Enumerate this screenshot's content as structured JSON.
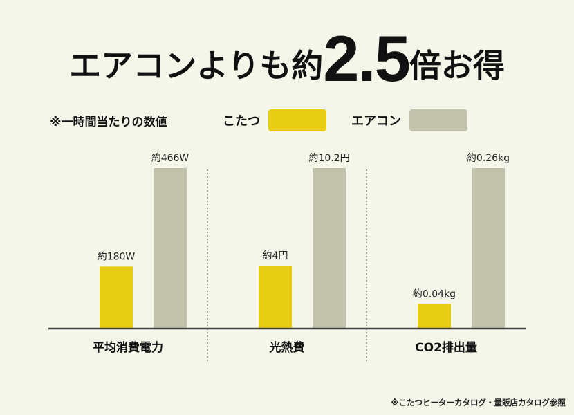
{
  "headline": {
    "prefix": "エアコンよりも約",
    "number": "2.5",
    "suffix": "倍お得"
  },
  "note": "※一時間当たりの数値",
  "legend": [
    {
      "label": "こたつ",
      "color": "#e6cc12"
    },
    {
      "label": "エアコン",
      "color": "#c2c1ab"
    }
  ],
  "chart_data": {
    "type": "bar",
    "groups": [
      {
        "category": "平均消費電力",
        "values": [
          180,
          466
        ],
        "labels": [
          "約180W",
          "約466W"
        ],
        "unit": "W"
      },
      {
        "category": "光熱費",
        "values": [
          4,
          10.2
        ],
        "labels": [
          "約4円",
          "約10.2円"
        ],
        "unit": "円"
      },
      {
        "category": "CO2排出量",
        "values": [
          0.04,
          0.26
        ],
        "labels": [
          "約0.04kg",
          "約0.26kg"
        ],
        "unit": "kg"
      }
    ],
    "series": [
      {
        "name": "こたつ",
        "color": "#e6cc12"
      },
      {
        "name": "エアコン",
        "color": "#c2c1ab"
      }
    ]
  },
  "source": "※こたつヒーターカタログ・量販店カタログ参照"
}
